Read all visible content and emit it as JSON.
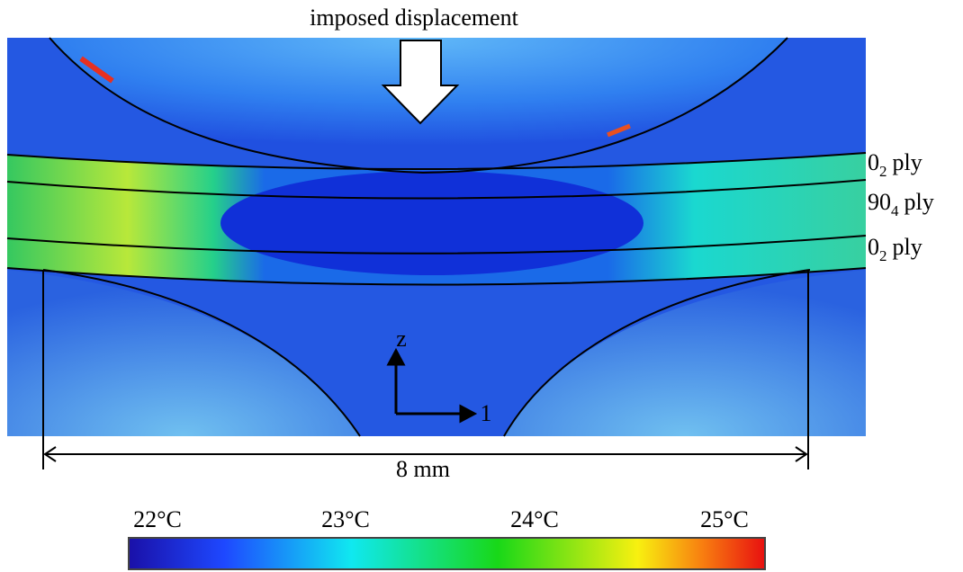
{
  "title": "imposed displacement",
  "ply_labels": [
    {
      "main": "0",
      "sub": "2",
      "suffix": "ply"
    },
    {
      "main": "90",
      "sub": "4",
      "suffix": "ply"
    },
    {
      "main": "0",
      "sub": "2",
      "suffix": "ply"
    }
  ],
  "axes": {
    "vertical": "z",
    "horizontal": "1"
  },
  "dimension": "8 mm",
  "colorbar": {
    "labels": [
      "22°C",
      "23°C",
      "24°C",
      "25°C"
    ]
  }
}
